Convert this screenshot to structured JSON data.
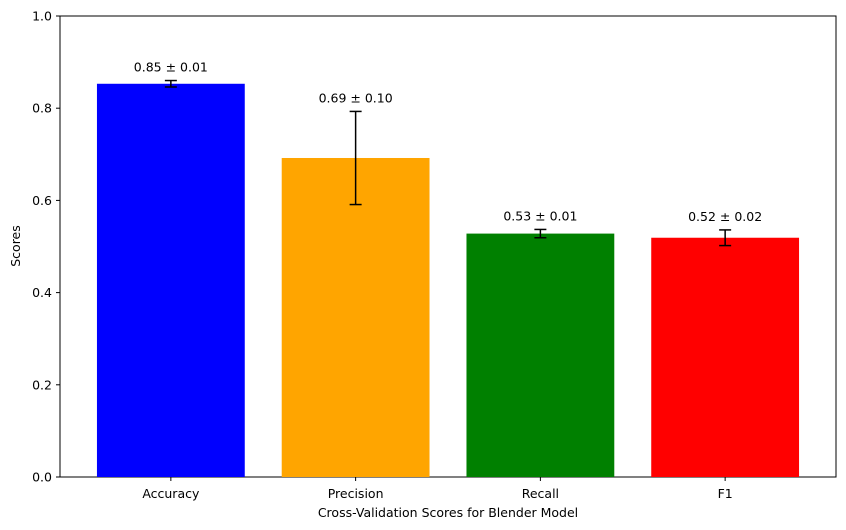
{
  "chart_data": {
    "type": "bar",
    "title": "",
    "xlabel": "Cross-Validation Scores for Blender Model",
    "ylabel": "Scores",
    "ylim": [
      0,
      1.0
    ],
    "yticks": [
      0.0,
      0.2,
      0.4,
      0.6,
      0.8,
      1.0
    ],
    "ytick_labels": [
      "0.0",
      "0.2",
      "0.4",
      "0.6",
      "0.8",
      "1.0"
    ],
    "categories": [
      "Accuracy",
      "Precision",
      "Recall",
      "F1"
    ],
    "values": [
      0.853,
      0.692,
      0.528,
      0.519
    ],
    "errors": [
      0.007,
      0.101,
      0.009,
      0.017
    ],
    "data_labels": [
      "0.85 ± 0.01",
      "0.69 ± 0.10",
      "0.53 ± 0.01",
      "0.52 ± 0.02"
    ],
    "colors": [
      "#0000ff",
      "#ffa500",
      "#008000",
      "#ff0000"
    ],
    "grid": false,
    "legend": "none"
  }
}
